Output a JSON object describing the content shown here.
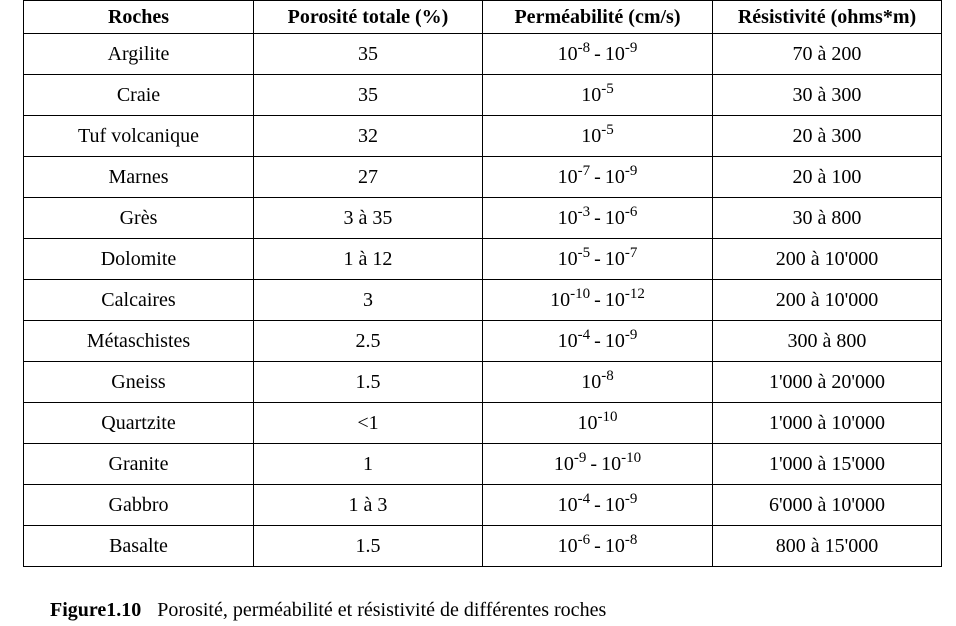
{
  "table": {
    "headers": [
      "Roches",
      "Porosité totale (%)",
      "Perméabilité (cm/s)",
      "Résistivité (ohms*m)"
    ],
    "rows": [
      {
        "roche": "Argilite",
        "porosite": "35",
        "perm": {
          "base": "10",
          "exp1": "-8",
          "exp2": "-9"
        },
        "resistivite": "70 à 200"
      },
      {
        "roche": "Craie",
        "porosite": "35",
        "perm": {
          "base": "10",
          "exp1": "-5",
          "exp2": null
        },
        "resistivite": "30 à 300"
      },
      {
        "roche": "Tuf volcanique",
        "porosite": "32",
        "perm": {
          "base": "10",
          "exp1": "-5",
          "exp2": null
        },
        "resistivite": "20 à 300"
      },
      {
        "roche": "Marnes",
        "porosite": "27",
        "perm": {
          "base": "10",
          "exp1": "-7",
          "exp2": "-9"
        },
        "resistivite": "20 à 100"
      },
      {
        "roche": "Grès",
        "porosite": "3 à 35",
        "perm": {
          "base": "10",
          "exp1": "-3",
          "exp2": "-6"
        },
        "resistivite": "30 à 800"
      },
      {
        "roche": "Dolomite",
        "porosite": "1 à 12",
        "perm": {
          "base": "10",
          "exp1": "-5",
          "exp2": "-7"
        },
        "resistivite": "200 à 10'000"
      },
      {
        "roche": "Calcaires",
        "porosite": "3",
        "perm": {
          "base": "10",
          "exp1": "-10",
          "exp2": "-12"
        },
        "resistivite": "200 à 10'000"
      },
      {
        "roche": "Métaschistes",
        "porosite": "2.5",
        "perm": {
          "base": "10",
          "exp1": "-4",
          "exp2": "-9"
        },
        "resistivite": "300 à 800"
      },
      {
        "roche": "Gneiss",
        "porosite": "1.5",
        "perm": {
          "base": "10",
          "exp1": "-8",
          "exp2": null
        },
        "resistivite": "1'000 à 20'000"
      },
      {
        "roche": "Quartzite",
        "porosite": "<1",
        "perm": {
          "base": "10",
          "exp1": "-10",
          "exp2": null
        },
        "resistivite": "1'000 à 10'000"
      },
      {
        "roche": "Granite",
        "porosite": "1",
        "perm": {
          "base": "10",
          "exp1": "-9",
          "exp2": "-10"
        },
        "resistivite": "1'000 à 15'000"
      },
      {
        "roche": "Gabbro",
        "porosite": "1 à 3",
        "perm": {
          "base": "10",
          "exp1": "-4",
          "exp2": "-9"
        },
        "resistivite": "6'000 à 10'000"
      },
      {
        "roche": "Basalte",
        "porosite": "1.5",
        "perm": {
          "base": "10",
          "exp1": "-6",
          "exp2": "-8"
        },
        "resistivite": "800 à 15'000"
      }
    ]
  },
  "caption": {
    "label": "Figure1.10",
    "text": "Porosité, perméabilité et résistivité de différentes roches"
  }
}
